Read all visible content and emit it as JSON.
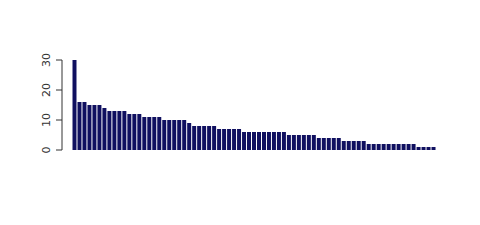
{
  "chart_data": {
    "type": "bar",
    "values": [
      30,
      16,
      16,
      15,
      15,
      15,
      14,
      13,
      13,
      13,
      13,
      12,
      12,
      12,
      11,
      11,
      11,
      11,
      10,
      10,
      10,
      10,
      10,
      9,
      8,
      8,
      8,
      8,
      8,
      7,
      7,
      7,
      7,
      7,
      6,
      6,
      6,
      6,
      6,
      6,
      6,
      6,
      6,
      5,
      5,
      5,
      5,
      5,
      5,
      4,
      4,
      4,
      4,
      4,
      3,
      3,
      3,
      3,
      3,
      2,
      2,
      2,
      2,
      2,
      2,
      2,
      2,
      2,
      2,
      1,
      1,
      1,
      1
    ],
    "color": "#101060",
    "ylim": [
      0,
      30
    ],
    "yticks": [
      0,
      10,
      20,
      30
    ],
    "tick_labels": "y"
  }
}
